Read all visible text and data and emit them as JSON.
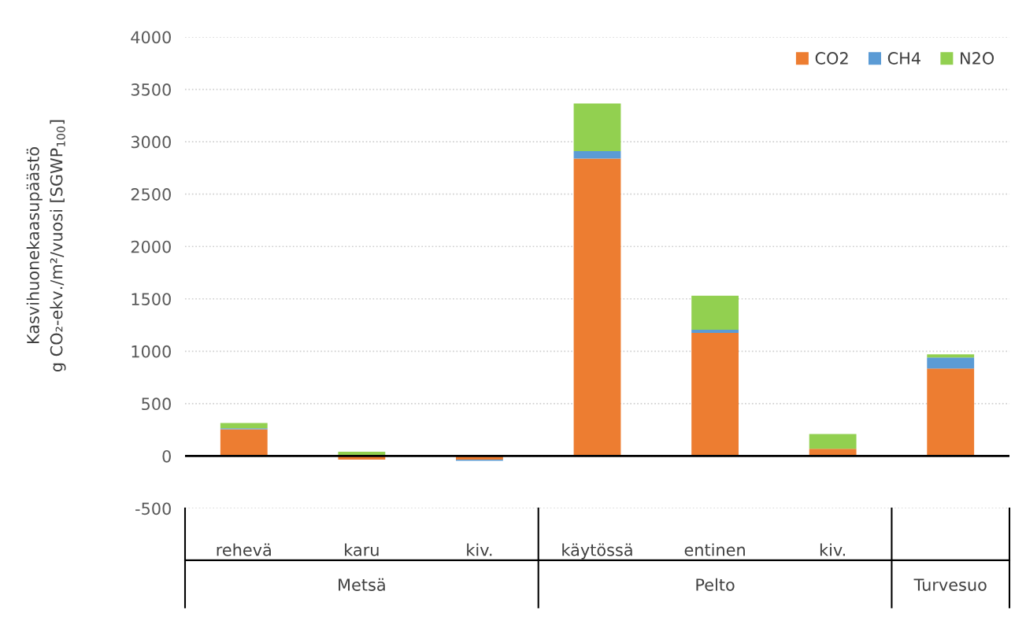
{
  "chart_data": {
    "type": "bar",
    "stacked": true,
    "ylabel": "Kasvihuonekaasupäästö\ng CO₂-ekv./m²/vuosi [SGWP$_{100}$]",
    "categories": [
      "rehevä",
      "karu",
      "kiv.",
      "käytössä",
      "entinen",
      "kiv.",
      null
    ],
    "series": [
      {
        "name": "CO2",
        "color": "#ed7d31",
        "values": [
          255,
          -35,
          -35,
          2840,
          1175,
          70,
          835
        ]
      },
      {
        "name": "CH4",
        "color": "#5b9bd5",
        "values": [
          10,
          null,
          -10,
          70,
          30,
          0,
          105
        ]
      },
      {
        "name": "N2O",
        "color": "#92d050",
        "values": [
          50,
          40,
          0,
          455,
          325,
          140,
          30
        ]
      }
    ],
    "annotations": [
      "Metsä",
      "Pelto",
      "Turvesuo"
    ],
    "ylim": [
      -500,
      4000
    ],
    "yticks": [
      -500,
      0,
      500,
      1000,
      1500,
      2000,
      2500,
      3000,
      3500,
      4000
    ],
    "grid": "y",
    "legend": "top right"
  }
}
